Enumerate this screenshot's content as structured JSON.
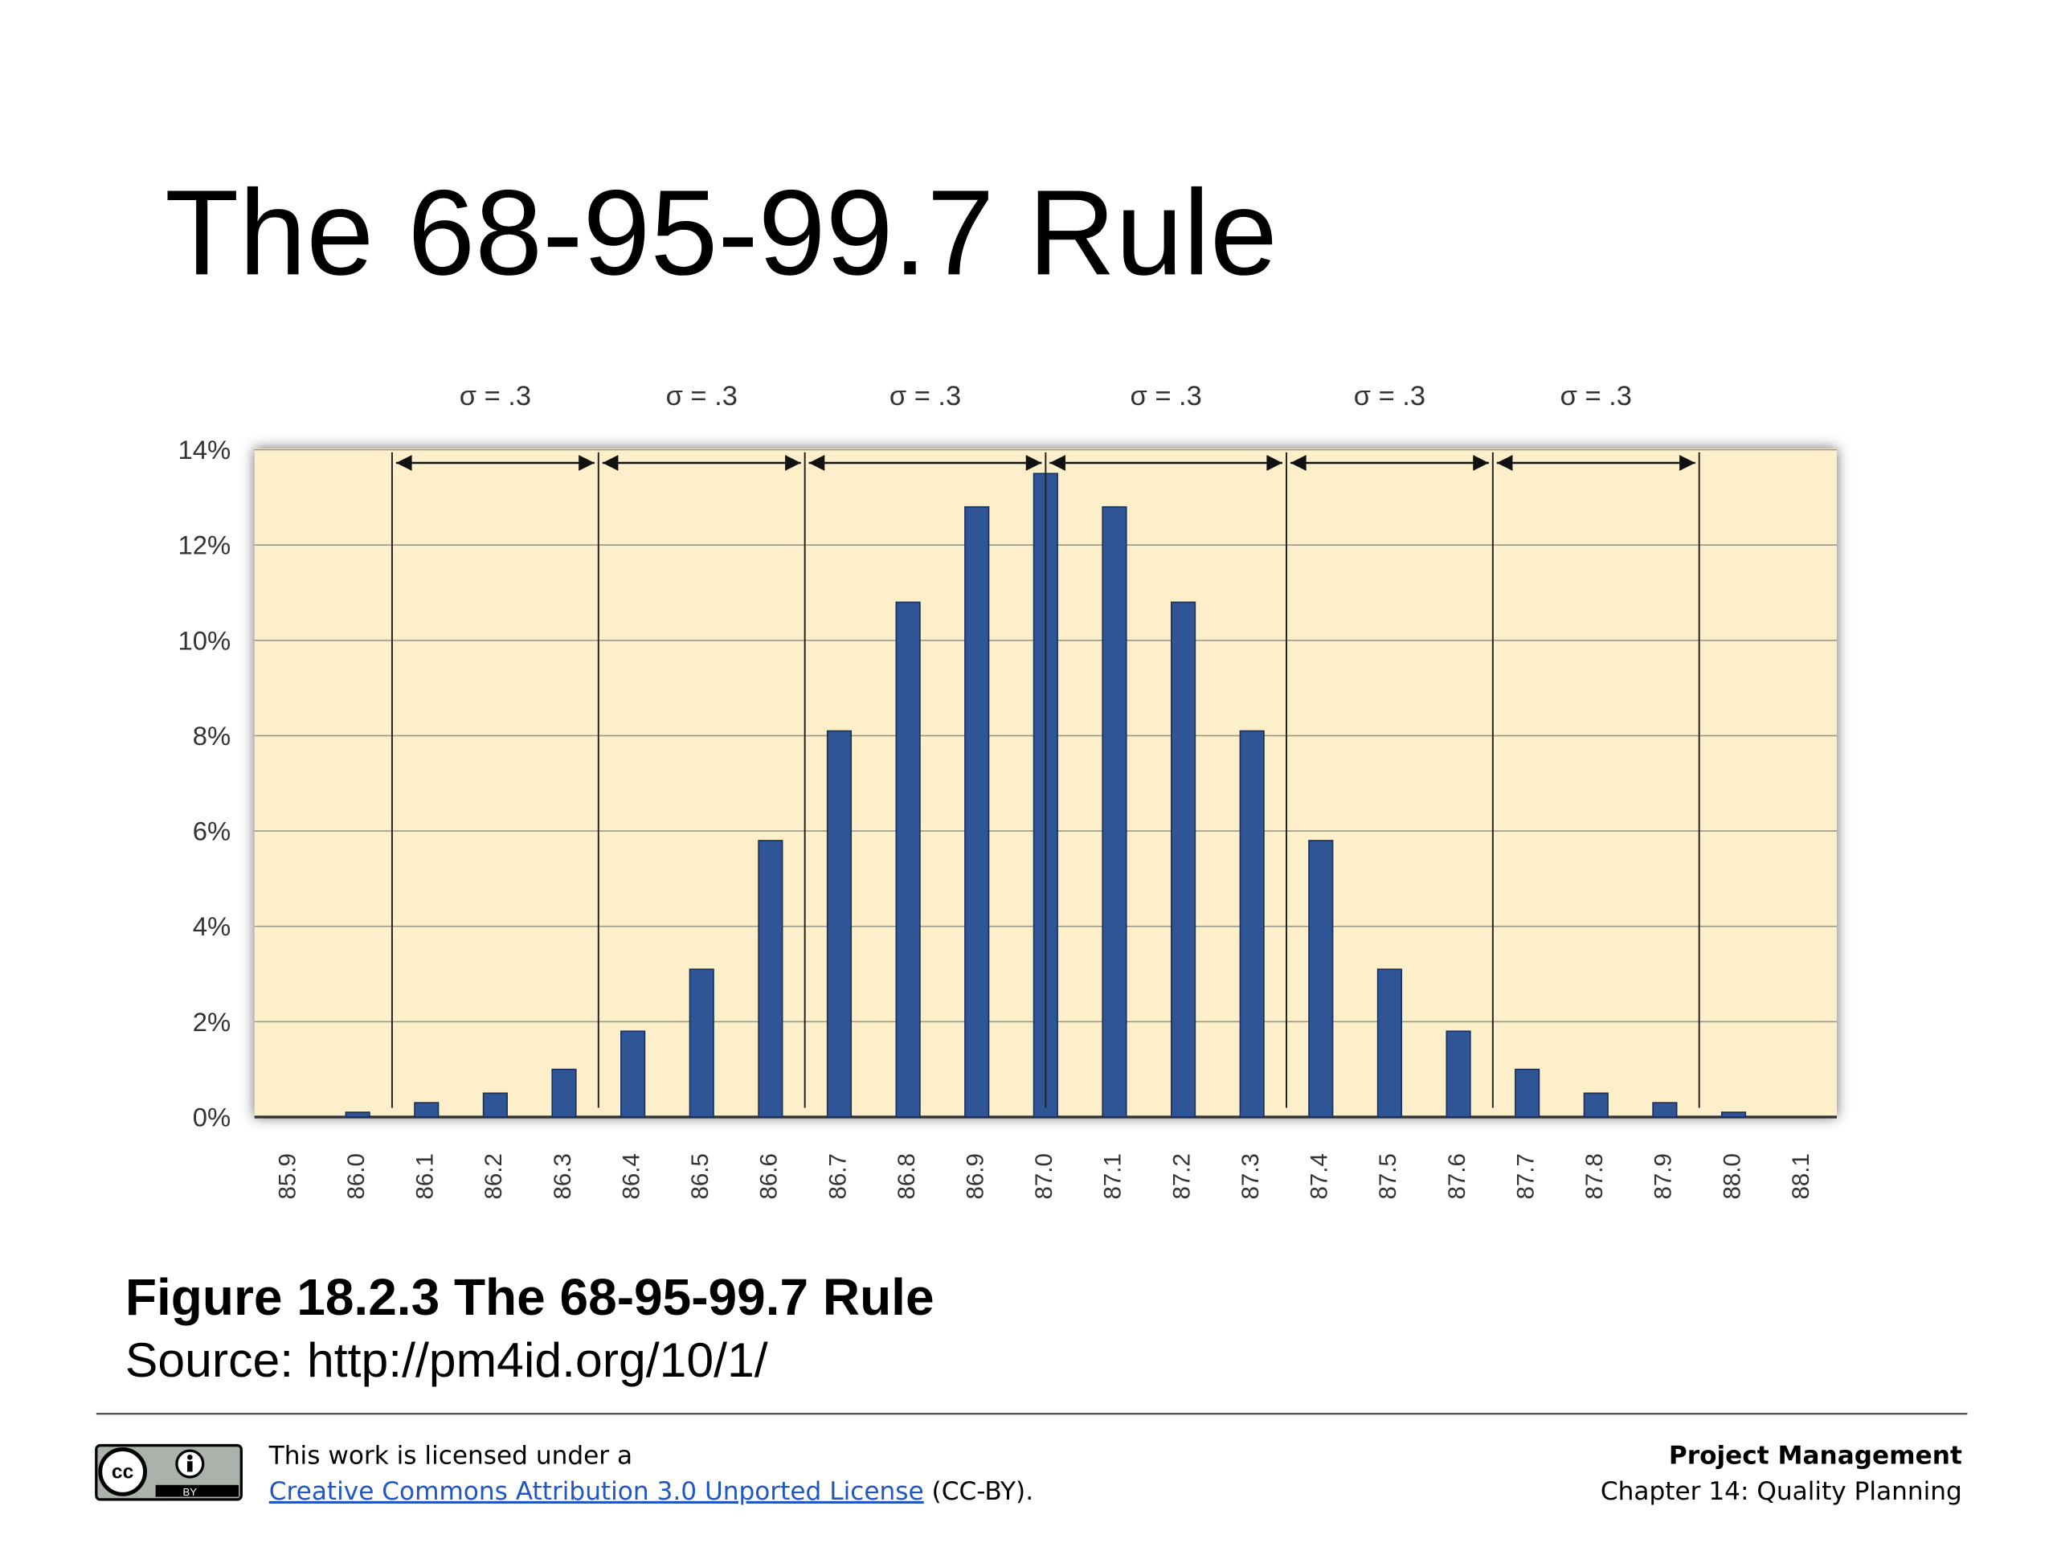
{
  "slide_title": "The 68-95-99.7 Rule",
  "chart_data": {
    "type": "bar",
    "categories": [
      "85.9",
      "86.0",
      "86.1",
      "86.2",
      "86.3",
      "86.4",
      "86.5",
      "86.6",
      "86.7",
      "86.8",
      "86.9",
      "87.0",
      "87.1",
      "87.2",
      "87.3",
      "87.4",
      "87.5",
      "87.6",
      "87.7",
      "87.8",
      "87.9",
      "88.0",
      "88.1"
    ],
    "values": [
      0,
      0.1,
      0.3,
      0.5,
      1.0,
      1.8,
      3.1,
      5.8,
      8.1,
      10.8,
      12.8,
      13.5,
      12.8,
      10.8,
      8.1,
      5.8,
      3.1,
      1.8,
      1.0,
      0.5,
      0.3,
      0.1,
      0
    ],
    "color": "#2f5597",
    "ylim": [
      0,
      14
    ],
    "yticks": [
      {
        "value": 0,
        "label": "0%"
      },
      {
        "value": 2,
        "label": "2%"
      },
      {
        "value": 4,
        "label": "4%"
      },
      {
        "value": 6,
        "label": "6%"
      },
      {
        "value": 8,
        "label": "8%"
      },
      {
        "value": 10,
        "label": "10%"
      },
      {
        "value": 12,
        "label": "12%"
      },
      {
        "value": 14,
        "label": "14%"
      }
    ],
    "grid": true,
    "annotations": [
      "σ = .3",
      "σ = .3",
      "σ = .3",
      "σ = .3",
      "σ = .3",
      "σ = .3"
    ]
  },
  "caption": {
    "figure": "Figure 18.2.3 The 68-95-99.7 Rule",
    "source": "Source: http://pm4id.org/10/1/"
  },
  "footer": {
    "badge_cc": "cc",
    "badge_by": "BY",
    "license_prefix": "This work is licensed under a",
    "license_link": "Creative Commons Attribution 3.0 Unported License",
    "license_suffix": "(CC-BY).",
    "course": "Project Management",
    "chapter": "Chapter 14: Quality Planning"
  }
}
